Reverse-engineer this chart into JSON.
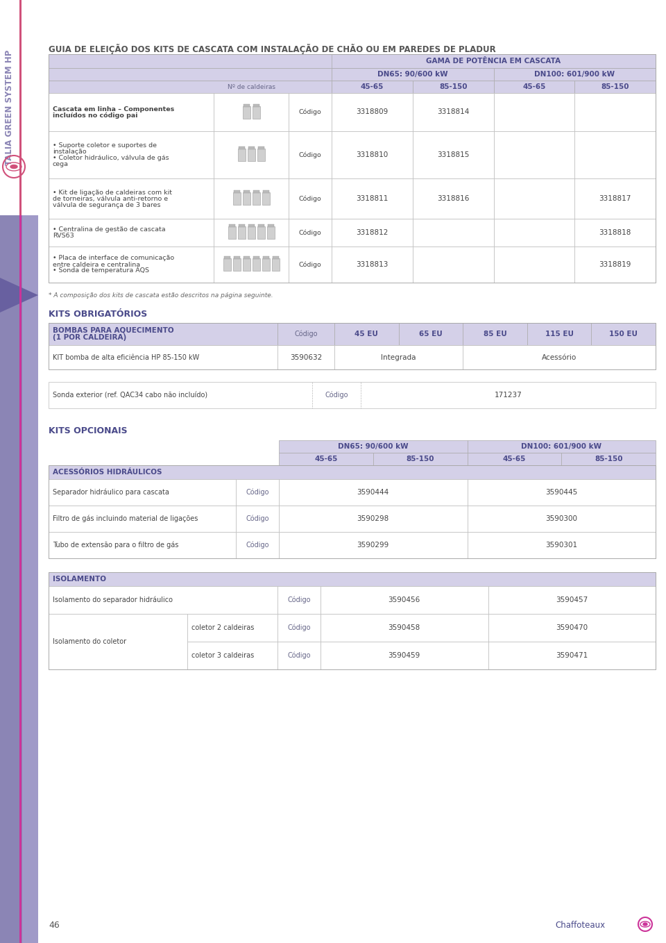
{
  "bg_color": "#ffffff",
  "sidebar_purple": "#8b85b5",
  "sidebar_light_purple": "#b0acd0",
  "sidebar_text": "TALIA GREEN SYSTEM HP",
  "sidebar_accent_pink": "#cc3399",
  "main_title": "GUIA DE ELEIÇÃO DOS KITS DE CASCATA COM INSTALAÇÃO DE CHÃO OU EM PAREDES DE PLADUR",
  "accent_blue": "#4a4a8a",
  "light_blue_header": "#d4d0e8",
  "text_color": "#444444",
  "border_color": "#aaaaaa",
  "dashed_border": "#bbbbbb",
  "table1_header_span": "GAMA DE POTÊNCIA EM CASCATA",
  "table1_subheader1": "DN65: 90/600 kW",
  "table1_subheader2": "DN100: 601/900 kW",
  "table1_col_labels": [
    "45-65",
    "85-150",
    "45-65",
    "85-150"
  ],
  "table1_col_label": "Nº de caldeiras",
  "table1_rows": [
    {
      "description": "Cascata em linha – Componentes\nincluídos no código pai",
      "bold": true,
      "n_boilers": 2,
      "code_label": "Código",
      "values": [
        "3318809",
        "3318814",
        "",
        ""
      ]
    },
    {
      "description": "• Suporte coletor e suportes de\ninstalação\n• Coletor hidráulico, válvula de gás\ncega",
      "bold": false,
      "n_boilers": 3,
      "code_label": "Código",
      "values": [
        "3318810",
        "3318815",
        "",
        ""
      ]
    },
    {
      "description": "• Kit de ligação de caldeiras com kit\nde torneiras, válvula anti-retorno e\nválvula de segurança de 3 bares",
      "bold": false,
      "n_boilers": 4,
      "code_label": "Código",
      "values": [
        "3318811",
        "3318816",
        "",
        "3318817"
      ]
    },
    {
      "description": "• Centralina de gestão de cascata\nRVS63",
      "bold": false,
      "n_boilers": 5,
      "code_label": "Código",
      "values": [
        "3318812",
        "",
        "",
        "3318818"
      ]
    },
    {
      "description": "• Placa de interface de comunicação\nentre caldeira e centralina\n• Sonda de temperatura AQS",
      "bold": false,
      "n_boilers": 6,
      "code_label": "Código",
      "values": [
        "3318813",
        "",
        "",
        "3318819"
      ]
    }
  ],
  "footnote": "* A composição dos kits de cascata estão descritos na página seguinte.",
  "section2_title": "KITS OBRIGATÓRIOS",
  "section2_header": "BOMBAS PARA AQUECIMENTO\n(1 POR CALDEIRA)",
  "section2_col_labels": [
    "45 EU",
    "65 EU",
    "85 EU",
    "115 EU",
    "150 EU"
  ],
  "section2_rows": [
    {
      "description": "KIT bomba de alta eficiência HP 85-150 kW",
      "code": "3590632",
      "span1_text": "Integrada",
      "span2_text": "Acessório"
    }
  ],
  "section3_row": {
    "description": "Sonda exterior (ref. QAC34 cabo não incluído)",
    "code_label": "Código",
    "value": "171237"
  },
  "section4_title": "KITS OPCIONAIS",
  "section4_header1": "DN65: 90/600 kW",
  "section4_header2": "DN100: 601/900 kW",
  "section4_col_labels": [
    "45-65",
    "85-150",
    "45-65",
    "85-150"
  ],
  "section4_subsection1": "ACESSÓRIOS HIDRÁULICOS",
  "section4_rows1": [
    {
      "description": "Separador hidráulico para cascata",
      "code_label": "Código",
      "val1": "3590444",
      "val2": "3590445"
    },
    {
      "description": "Filtro de gás incluindo material de ligações",
      "code_label": "Código",
      "val1": "3590298",
      "val2": "3590300"
    },
    {
      "description": "Tubo de extensão para o filtro de gás",
      "code_label": "Código",
      "val1": "3590299",
      "val2": "3590301"
    }
  ],
  "section5_subsection": "ISOLAMENTO",
  "section5_rows": [
    {
      "description": "Isolamento do separador hidráulico",
      "sub": "",
      "code_label": "Código",
      "val1": "3590456",
      "val2": "3590457"
    },
    {
      "description": "Isolamento do coletor",
      "sub": "coletor 2 caldeiras",
      "code_label": "Código",
      "val1": "3590458",
      "val2": "3590470"
    },
    {
      "description": "",
      "sub": "coletor 3 caldeiras",
      "code_label": "Código",
      "val1": "3590459",
      "val2": "3590471"
    }
  ],
  "page_number": "46",
  "brand": "Chaffoteaux"
}
